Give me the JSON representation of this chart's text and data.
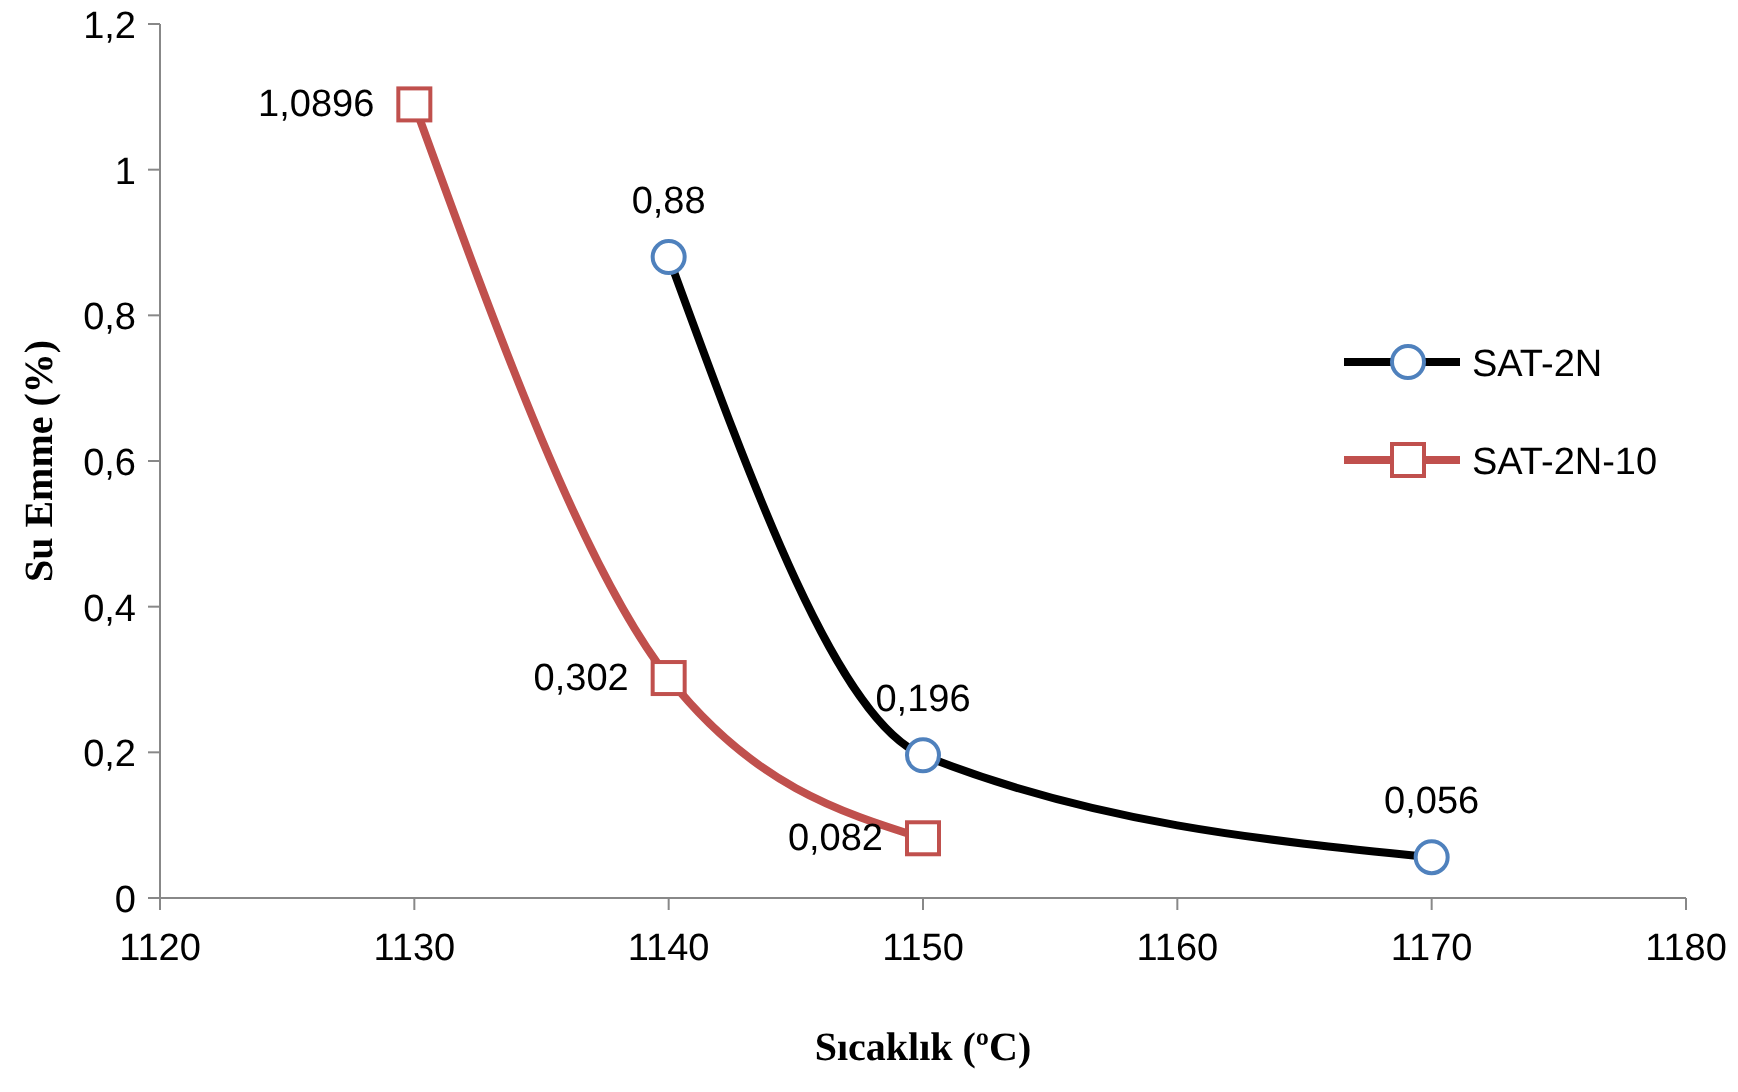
{
  "chart_data": {
    "type": "line",
    "xlabel": "Sıcaklık (ºC)",
    "ylabel": "Su Emme (%)",
    "xlim": [
      1120,
      1180
    ],
    "xticks": [
      1120,
      1130,
      1140,
      1150,
      1160,
      1170,
      1180
    ],
    "ylim": [
      0,
      1.2
    ],
    "yticks": [
      {
        "value": 0,
        "label": "0"
      },
      {
        "value": 0.2,
        "label": "0,2"
      },
      {
        "value": 0.4,
        "label": "0,4"
      },
      {
        "value": 0.6,
        "label": "0,6"
      },
      {
        "value": 0.8,
        "label": "0,8"
      },
      {
        "value": 1,
        "label": "1"
      },
      {
        "value": 1.2,
        "label": "1,2"
      }
    ],
    "grid": false,
    "legend": "right",
    "series": [
      {
        "name": "SAT-2N",
        "color": "#000000",
        "marker": "circle",
        "x": [
          1140,
          1150,
          1170
        ],
        "values": [
          0.88,
          0.196,
          0.056
        ],
        "value_labels": [
          "0,88",
          "0,196",
          "0,056"
        ]
      },
      {
        "name": "SAT-2N-10",
        "color": "#c0504d",
        "marker": "square",
        "x": [
          1130,
          1140,
          1150
        ],
        "values": [
          1.0896,
          0.302,
          0.082
        ],
        "value_labels": [
          "1,0896",
          "0,302",
          "0,082"
        ]
      }
    ]
  }
}
